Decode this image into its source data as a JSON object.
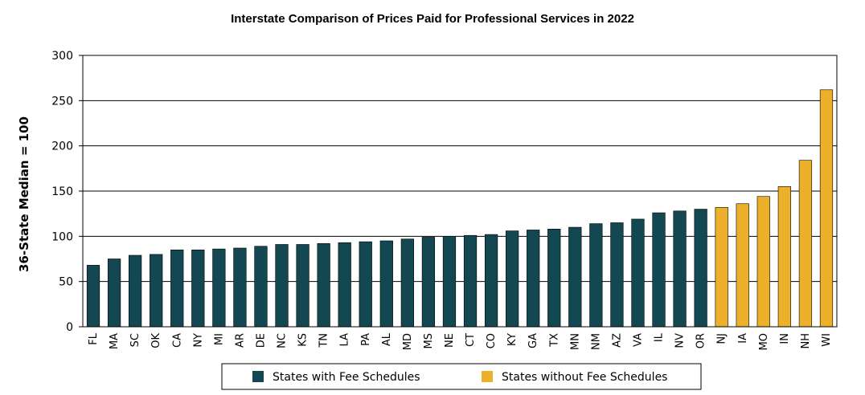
{
  "chart_data": {
    "type": "bar",
    "title": "Interstate Comparison of Prices Paid for Professional Services in 2022",
    "xlabel": "",
    "ylabel": "36-State Median = 100",
    "ylim": [
      0,
      300
    ],
    "yticks": [
      0,
      50,
      100,
      150,
      200,
      250,
      300
    ],
    "grid": true,
    "categories": [
      "FL",
      "MA",
      "SC",
      "OK",
      "CA",
      "NY",
      "MI",
      "AR",
      "DE",
      "NC",
      "KS",
      "TN",
      "LA",
      "PA",
      "AL",
      "MD",
      "MS",
      "NE",
      "CT",
      "CO",
      "KY",
      "GA",
      "TX",
      "MN",
      "NM",
      "AZ",
      "VA",
      "IL",
      "NV",
      "OR",
      "NJ",
      "IA",
      "MO",
      "IN",
      "NH",
      "WI"
    ],
    "values": [
      68,
      75,
      79,
      80,
      85,
      85,
      86,
      87,
      89,
      91,
      91,
      92,
      93,
      94,
      95,
      97,
      99,
      100,
      101,
      102,
      106,
      107,
      108,
      110,
      114,
      115,
      119,
      126,
      128,
      130,
      132,
      136,
      144,
      155,
      184,
      262
    ],
    "groups": [
      "with",
      "with",
      "with",
      "with",
      "with",
      "with",
      "with",
      "with",
      "with",
      "with",
      "with",
      "with",
      "with",
      "with",
      "with",
      "with",
      "with",
      "with",
      "with",
      "with",
      "with",
      "with",
      "with",
      "with",
      "with",
      "with",
      "with",
      "with",
      "with",
      "with",
      "without",
      "without",
      "without",
      "without",
      "without",
      "without"
    ],
    "series": [
      {
        "key": "with",
        "name": "States with Fee Schedules",
        "color": "#134852"
      },
      {
        "key": "without",
        "name": "States without Fee Schedules",
        "color": "#EDB02B"
      }
    ],
    "legend_position": "bottom-center"
  }
}
